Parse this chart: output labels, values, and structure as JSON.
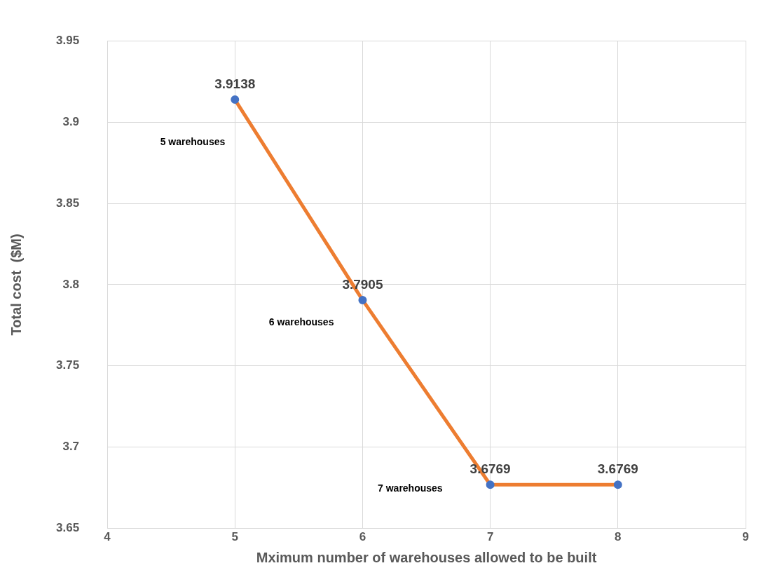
{
  "chart_data": {
    "type": "line",
    "xlabel": "Mximum number of warehouses allowed to be built",
    "ylabel": "Total cost  ($M)",
    "x": [
      5,
      6,
      7,
      8
    ],
    "series": [
      {
        "color": "#ed7d31",
        "colors": [
          "#4472c4",
          "#4472c4",
          "#4472c4",
          "#4472c4"
        ],
        "values": [
          3.9138,
          3.7905,
          3.6769,
          3.6769
        ]
      }
    ],
    "xlim": [
      4,
      9
    ],
    "xticks": [
      4,
      5,
      6,
      7,
      8,
      9
    ],
    "ylim": [
      3.65,
      3.95
    ],
    "yticks": [
      3.65,
      3.7,
      3.75,
      3.8,
      3.85,
      3.9,
      3.95
    ],
    "grid": true,
    "legend": false,
    "marker": "circle",
    "line_style": "solid",
    "data_labels": true,
    "annotations": [
      "5 warehouses",
      "6 warehouses",
      "7 warehouses"
    ]
  }
}
